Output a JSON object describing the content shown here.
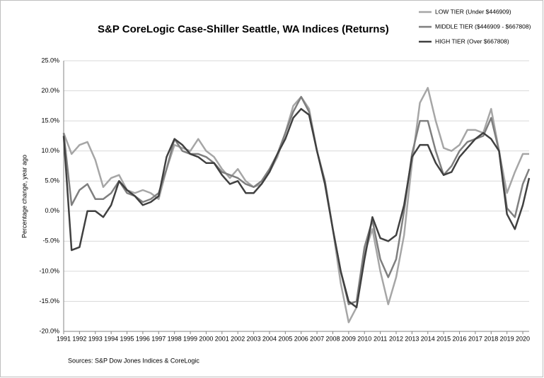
{
  "chart_data": {
    "type": "line",
    "title": "S&P CoreLogic Case-Shiller Seattle, WA Indices (Returns)",
    "y_label": "Percentage change, year ago",
    "source": "Sources: S&P Dow Jones Indices & CoreLogic",
    "x": [
      1991,
      1991.5,
      1992,
      1992.5,
      1993,
      1993.5,
      1994,
      1994.5,
      1995,
      1995.5,
      1996,
      1996.5,
      1997,
      1997.5,
      1998,
      1998.5,
      1999,
      1999.5,
      2000,
      2000.5,
      2001,
      2001.5,
      2002,
      2002.5,
      2003,
      2003.5,
      2004,
      2004.5,
      2005,
      2005.5,
      2006,
      2006.5,
      2007,
      2007.5,
      2008,
      2008.5,
      2009,
      2009.5,
      2010,
      2010.5,
      2011,
      2011.5,
      2012,
      2012.5,
      2013,
      2013.5,
      2014,
      2014.5,
      2015,
      2015.5,
      2016,
      2016.5,
      2017,
      2017.5,
      2018,
      2018.5,
      2019,
      2019.5,
      2020,
      2020.4
    ],
    "series": [
      {
        "name": "LOW TIER (Under $446909)",
        "color": "#a6a6a6",
        "values": [
          13,
          9.5,
          11,
          11.5,
          8.5,
          4,
          5.5,
          6,
          3.5,
          3,
          3.5,
          3,
          2,
          7,
          11,
          10.5,
          10,
          12,
          10,
          9,
          7,
          5.5,
          7,
          5,
          4,
          4.5,
          6.5,
          9,
          13,
          17.5,
          19,
          17,
          10,
          5,
          -3,
          -12,
          -18.5,
          -16,
          -7,
          -3,
          -10,
          -15.5,
          -11,
          -4,
          8,
          18,
          20.5,
          15,
          10.5,
          10,
          11,
          13.5,
          13.5,
          13,
          17,
          10,
          3,
          6.5,
          9.5,
          9.5
        ]
      },
      {
        "name": "MIDDLE TIER ($446909 - $667808)",
        "color": "#7f7f7f",
        "values": [
          13,
          1,
          3.5,
          4.5,
          2,
          2,
          3,
          5,
          3,
          2.5,
          1.5,
          2,
          3,
          7,
          12,
          10,
          9.5,
          9.5,
          9,
          8,
          6.5,
          6,
          5.5,
          4.5,
          4,
          5,
          7,
          9.5,
          13,
          16.5,
          19,
          16.5,
          10,
          5,
          -3,
          -10,
          -15.5,
          -15,
          -6,
          -1.5,
          -8,
          -11,
          -8,
          0,
          9.5,
          15,
          15,
          10,
          6,
          7.5,
          10,
          11.5,
          12,
          12.5,
          15.5,
          10,
          0.5,
          -1,
          4.5,
          7
        ]
      },
      {
        "name": "HIGH TIER (Over $667808)",
        "color": "#404040",
        "values": [
          12.5,
          -6.5,
          -6,
          0,
          0,
          -1,
          1,
          5,
          3.5,
          2.5,
          1,
          1.5,
          2.5,
          9,
          12,
          11,
          9.5,
          9,
          8,
          8,
          6,
          4.5,
          5,
          3,
          3,
          4.5,
          6.5,
          9.5,
          12,
          15.5,
          17,
          16,
          10,
          4.5,
          -3,
          -10,
          -15,
          -16,
          -8,
          -1,
          -4.5,
          -5,
          -4,
          1,
          9,
          11,
          11,
          8,
          6,
          6.5,
          9,
          10.5,
          12,
          13,
          12,
          10,
          -0.5,
          -3,
          1,
          5.5
        ]
      }
    ],
    "xlim": [
      1991,
      2020.4
    ],
    "xticks": [
      1991,
      1992,
      1993,
      1994,
      1995,
      1996,
      1997,
      1998,
      1999,
      2000,
      2001,
      2002,
      2003,
      2004,
      2005,
      2006,
      2007,
      2008,
      2009,
      2010,
      2011,
      2012,
      2013,
      2014,
      2015,
      2016,
      2017,
      2018,
      2019,
      2020
    ],
    "ylim": [
      -20,
      25
    ],
    "yticks": [
      {
        "value": -20,
        "label": "-20.0%"
      },
      {
        "value": -15,
        "label": "-15.0%"
      },
      {
        "value": -10,
        "label": "-10.0%"
      },
      {
        "value": -5,
        "label": "-5.0%"
      },
      {
        "value": 0,
        "label": "0.0%"
      },
      {
        "value": 5,
        "label": "5.0%"
      },
      {
        "value": 10,
        "label": "10.0%"
      },
      {
        "value": 15,
        "label": "15.0%"
      },
      {
        "value": 20,
        "label": "20.0%"
      },
      {
        "value": 25,
        "label": "25.0%"
      }
    ],
    "grid": true,
    "legend": "top-right"
  }
}
